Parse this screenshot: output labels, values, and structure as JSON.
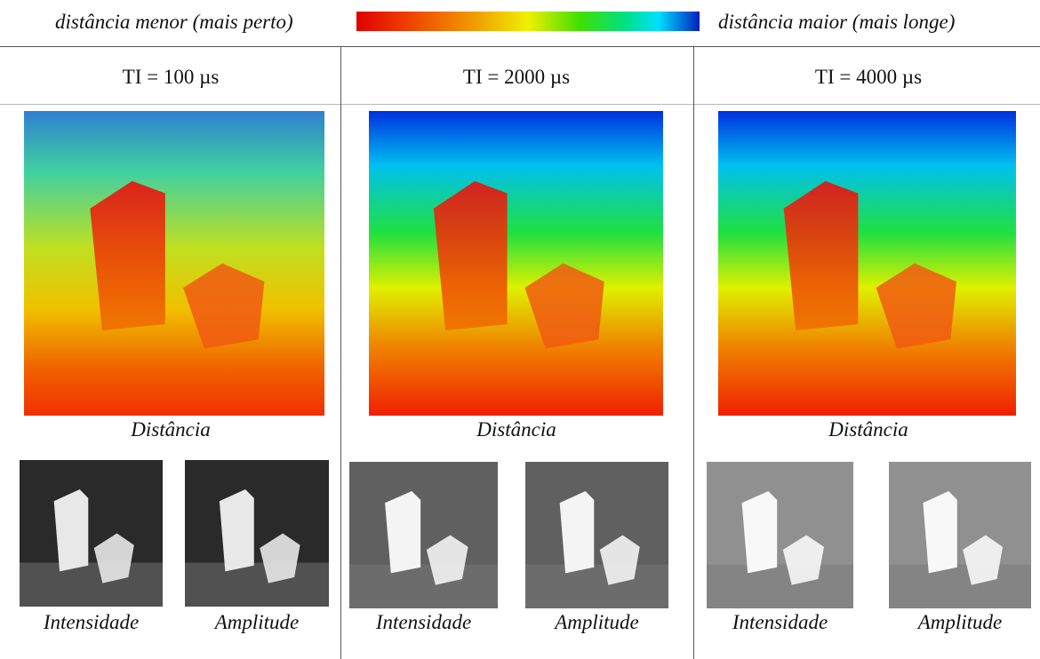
{
  "legend": {
    "near": "distância menor (mais perto)",
    "far": "distância maior (mais longe)"
  },
  "columns": [
    {
      "header": "TI = 100 µs",
      "distance_caption": "Distância",
      "intensity_caption": "Intensidade",
      "amplitude_caption": "Amplitude"
    },
    {
      "header": "TI = 2000 µs",
      "distance_caption": "Distância",
      "intensity_caption": "Intensidade",
      "amplitude_caption": "Amplitude"
    },
    {
      "header": "TI = 4000 µs",
      "distance_caption": "Distância",
      "intensity_caption": "Intensidade",
      "amplitude_caption": "Amplitude"
    }
  ]
}
